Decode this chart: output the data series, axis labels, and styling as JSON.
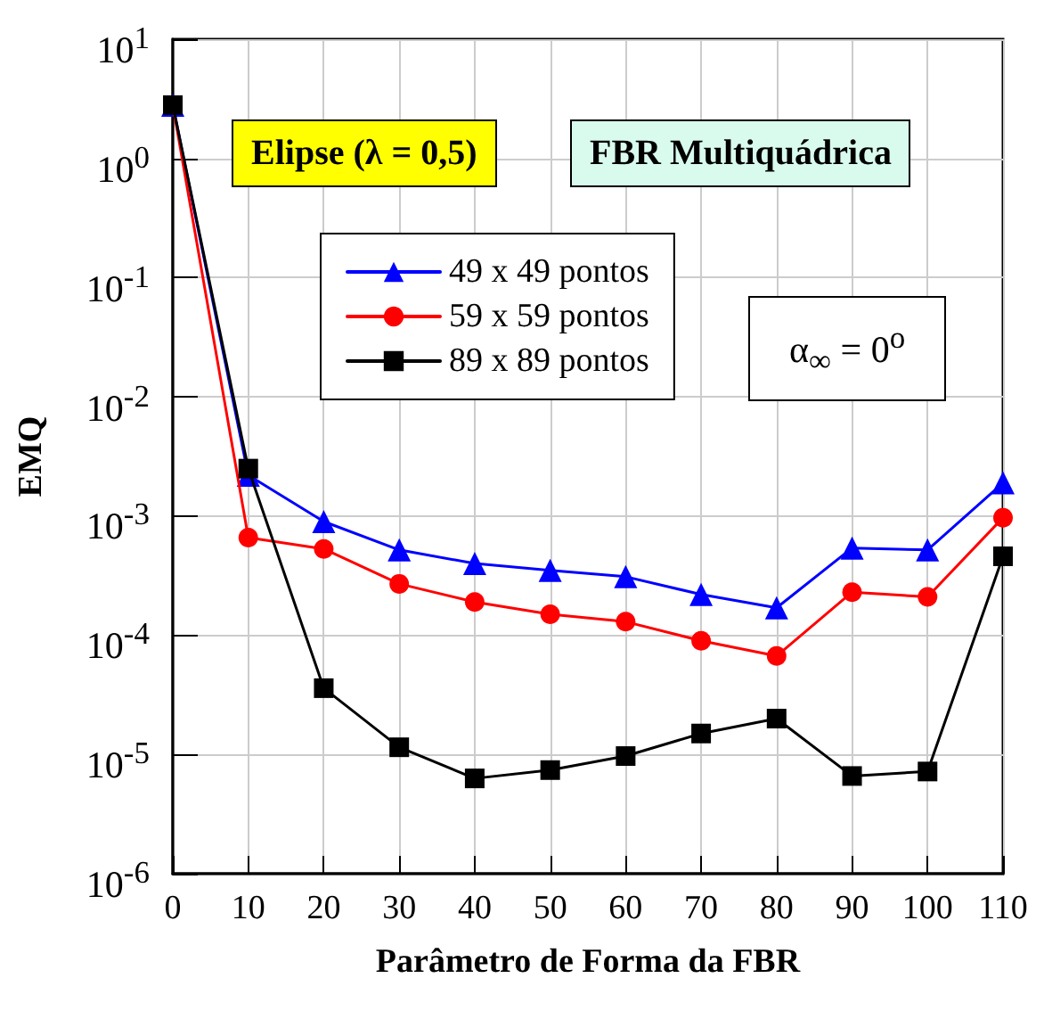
{
  "chart_data": {
    "type": "line",
    "xlabel": "Parâmetro de Forma da FBR",
    "ylabel": "EMQ",
    "x": [
      0,
      10,
      20,
      30,
      40,
      50,
      60,
      70,
      80,
      90,
      100,
      110
    ],
    "series": [
      {
        "name": "49 x 49 pontos",
        "color": "#0000ff",
        "marker": "triangle",
        "values": [
          2.8,
          0.0022,
          0.0009,
          0.00052,
          0.0004,
          0.00035,
          0.00031,
          0.00022,
          0.00017,
          0.00054,
          0.00052,
          0.0019
        ]
      },
      {
        "name": "59 x 59 pontos",
        "color": "#ff0000",
        "marker": "circle",
        "values": [
          2.8,
          0.00066,
          0.00053,
          0.00027,
          0.00019,
          0.00015,
          0.00013,
          9e-05,
          6.7e-05,
          0.00023,
          0.00021,
          0.00097
        ]
      },
      {
        "name": "89 x 89 pontos",
        "color": "#000000",
        "marker": "square",
        "values": [
          2.8,
          0.0025,
          3.6e-05,
          1.15e-05,
          6.3e-06,
          7.4e-06,
          9.7e-06,
          1.5e-05,
          2e-05,
          6.6e-06,
          7.2e-06,
          0.00046
        ]
      }
    ],
    "log": "y",
    "xlim": [
      0,
      110
    ],
    "ylim": [
      1e-06,
      10
    ],
    "xticks": [
      0,
      10,
      20,
      30,
      40,
      50,
      60,
      70,
      80,
      90,
      100,
      110
    ],
    "yticks": [
      {
        "value": 1e-06,
        "label": "10$^{-6}$"
      },
      {
        "value": 1e-05,
        "label": "10$^{-5}$"
      },
      {
        "value": 0.0001,
        "label": "10$^{-4}$"
      },
      {
        "value": 0.001,
        "label": "10$^{-3}$"
      },
      {
        "value": 0.01,
        "label": "10$^{-2}$"
      },
      {
        "value": 0.1,
        "label": "10$^{-1}$"
      },
      {
        "value": 1,
        "label": "10$^{0}$"
      },
      {
        "value": 10,
        "label": "10$^{1}$"
      }
    ],
    "grid": true,
    "legend": "top",
    "line_style": "solid",
    "annotations": [
      "Elipse (λ = 0,5)",
      "FBR Multiquádrica",
      "α$_{∞}$ = 0$^{o}$"
    ]
  }
}
